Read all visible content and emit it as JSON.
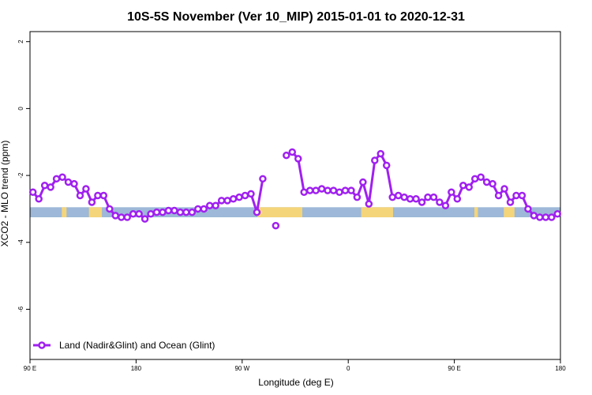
{
  "chart_data": {
    "type": "line",
    "title": "10S-5S November (Ver 10_MIP)   2015-01-01 to 2020-12-31",
    "xlabel": "Longitude (deg E)",
    "ylabel": "XCO2 - MLO trend (ppm)",
    "xlim": [
      90,
      540
    ],
    "ylim": [
      -7.5,
      2.3
    ],
    "x_ticks": [
      {
        "value": 90,
        "label": "90 E"
      },
      {
        "value": 180,
        "label": "180"
      },
      {
        "value": 270,
        "label": "90 W"
      },
      {
        "value": 360,
        "label": "0"
      },
      {
        "value": 450,
        "label": "90 E"
      },
      {
        "value": 540,
        "label": "180"
      }
    ],
    "y_ticks": [
      {
        "value": 2,
        "label": "2"
      },
      {
        "value": 0,
        "label": "0"
      },
      {
        "value": -2,
        "label": "-2"
      },
      {
        "value": -4,
        "label": "-4"
      },
      {
        "value": -6,
        "label": "-6"
      }
    ],
    "grid": false,
    "legend_position": "bottom-left",
    "series": [
      {
        "name": "Land (Nadir&Glint) and Ocean (Glint)",
        "color": "#a020f0",
        "segments": [
          {
            "x": [
              92.5,
              97.5,
              102.5,
              107.5,
              112.5,
              117.5,
              122.5,
              127.5,
              132.5,
              137.5,
              142.5,
              147.5,
              152.5,
              157.5,
              162.5,
              167.5,
              172.5,
              177.5,
              182.5,
              187.5,
              192.5,
              197.5,
              202.5,
              207.5,
              212.5,
              217.5,
              222.5,
              227.5,
              232.5,
              237.5,
              242.5,
              247.5,
              252.5,
              257.5,
              262.5,
              267.5,
              272.5,
              277.5,
              282.5,
              287.5
            ],
            "y": [
              -2.5,
              -2.7,
              -2.3,
              -2.35,
              -2.1,
              -2.05,
              -2.2,
              -2.25,
              -2.6,
              -2.4,
              -2.8,
              -2.6,
              -2.6,
              -3.0,
              -3.2,
              -3.25,
              -3.25,
              -3.15,
              -3.15,
              -3.3,
              -3.15,
              -3.1,
              -3.1,
              -3.05,
              -3.05,
              -3.1,
              -3.1,
              -3.1,
              -3.0,
              -3.0,
              -2.9,
              -2.9,
              -2.75,
              -2.75,
              -2.7,
              -2.65,
              -2.6,
              -2.55,
              -3.1,
              -2.1
            ]
          },
          {
            "x": [
              298.5
            ],
            "y": [
              -3.5
            ]
          },
          {
            "x": [
              307.5,
              312.5,
              317.5,
              322.5,
              327.5,
              332.5,
              337.5,
              342.5,
              347.5,
              352.5,
              357.5,
              362.5,
              367.5,
              372.5,
              377.5,
              382.5,
              387.5,
              392.5,
              397.5,
              402.5,
              407.5,
              412.5,
              417.5,
              422.5,
              427.5,
              432.5,
              437.5,
              442.5,
              447.5,
              452.5,
              457.5,
              462.5,
              467.5,
              472.5,
              477.5,
              482.5,
              487.5,
              492.5,
              497.5,
              502.5,
              507.5,
              512.5,
              517.5,
              522.5,
              527.5,
              532.5,
              537.5
            ],
            "y": [
              -1.4,
              -1.3,
              -1.5,
              -2.5,
              -2.45,
              -2.45,
              -2.4,
              -2.45,
              -2.45,
              -2.5,
              -2.45,
              -2.45,
              -2.65,
              -2.2,
              -2.85,
              -1.55,
              -1.35,
              -1.7,
              -2.65,
              -2.6,
              -2.65,
              -2.7,
              -2.7,
              -2.8,
              -2.65,
              -2.65,
              -2.8,
              -2.9,
              -2.5,
              -2.7,
              -2.3,
              -2.35,
              -2.1,
              -2.05,
              -2.2,
              -2.25,
              -2.6,
              -2.4,
              -2.8,
              -2.6,
              -2.6,
              -3.0,
              -3.2,
              -3.25,
              -3.25,
              -3.25,
              -3.15
            ]
          }
        ]
      }
    ],
    "land_band": {
      "y_range": [
        -3.25,
        -2.95
      ],
      "ocean_color": "#9db8d8",
      "land_color": "#f5d57a",
      "land_x_ranges": [
        [
          117,
          121
        ],
        [
          140,
          151
        ],
        [
          283,
          321
        ],
        [
          371,
          398
        ],
        [
          467,
          470
        ],
        [
          492,
          501
        ]
      ]
    }
  }
}
